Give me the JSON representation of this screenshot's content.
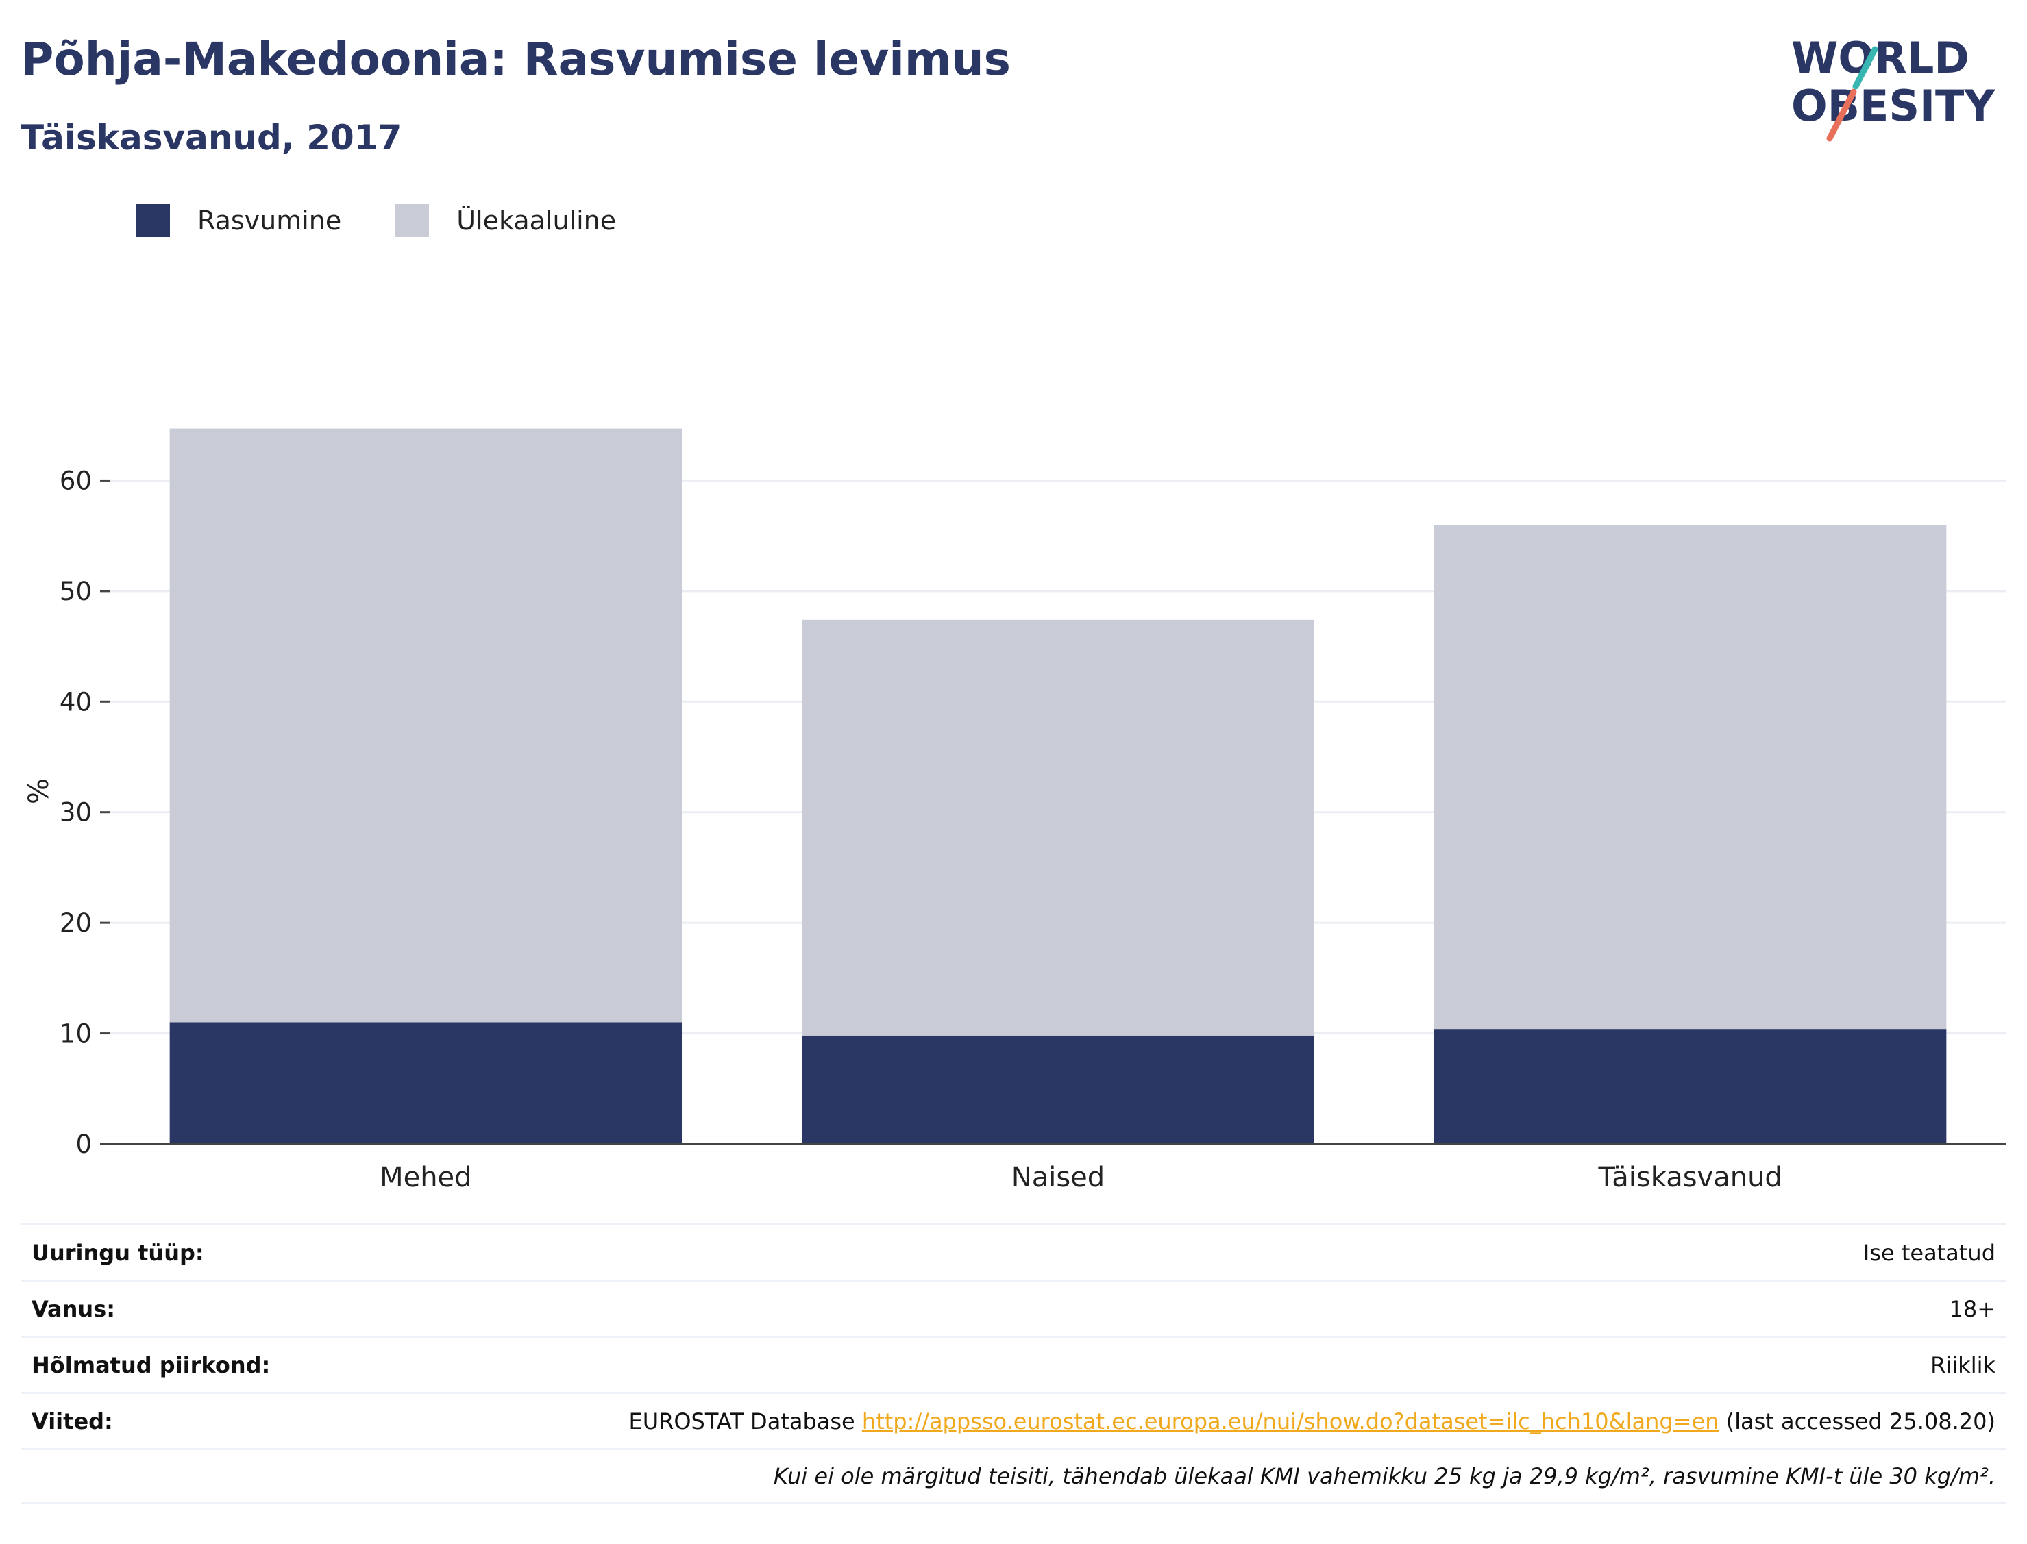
{
  "header": {
    "title": "Põhja-Makedoonia: Rasvumise levimus",
    "subtitle": "Täiskasvanud, 2017"
  },
  "logo": {
    "line1": "WORLD",
    "line2": "OBESITY"
  },
  "colors": {
    "obesity": "#2a3663",
    "overweight": "#c9cbd6",
    "title": "#2a3663",
    "link": "#f0a81c"
  },
  "chart_data": {
    "type": "bar",
    "stacked": true,
    "categories": [
      "Mehed",
      "Naised",
      "Täiskasvanud"
    ],
    "series": [
      {
        "name": "Rasvumine",
        "values": [
          11.0,
          9.8,
          10.4
        ]
      },
      {
        "name": "Ülekaaluline",
        "values": [
          53.7,
          37.6,
          45.6
        ]
      }
    ],
    "ylabel": "%",
    "xlabel": "",
    "yticks": [
      0,
      10,
      20,
      30,
      40,
      50,
      60
    ],
    "ylim": [
      0,
      70
    ],
    "grid": true,
    "legend_position": "top-left"
  },
  "info": {
    "rows": [
      {
        "key": "Uuringu tüüp:",
        "value": "Ise teatatud"
      },
      {
        "key": "Vanus:",
        "value": "18+"
      },
      {
        "key": "Hõlmatud piirkond:",
        "value": "Riiklik"
      }
    ],
    "references": {
      "key": "Viited:",
      "prefix": "EUROSTAT Database ",
      "link": "http://appsso.eurostat.ec.europa.eu/nui/show.do?dataset=ilc_hch10&lang=en",
      "suffix": " (last accessed 25.08.20)"
    },
    "note": "Kui ei ole märgitud teisiti, tähendab ülekaal KMI vahemikku 25 kg ja 29,9 kg/m², rasvumine KMI-t üle 30 kg/m²."
  }
}
